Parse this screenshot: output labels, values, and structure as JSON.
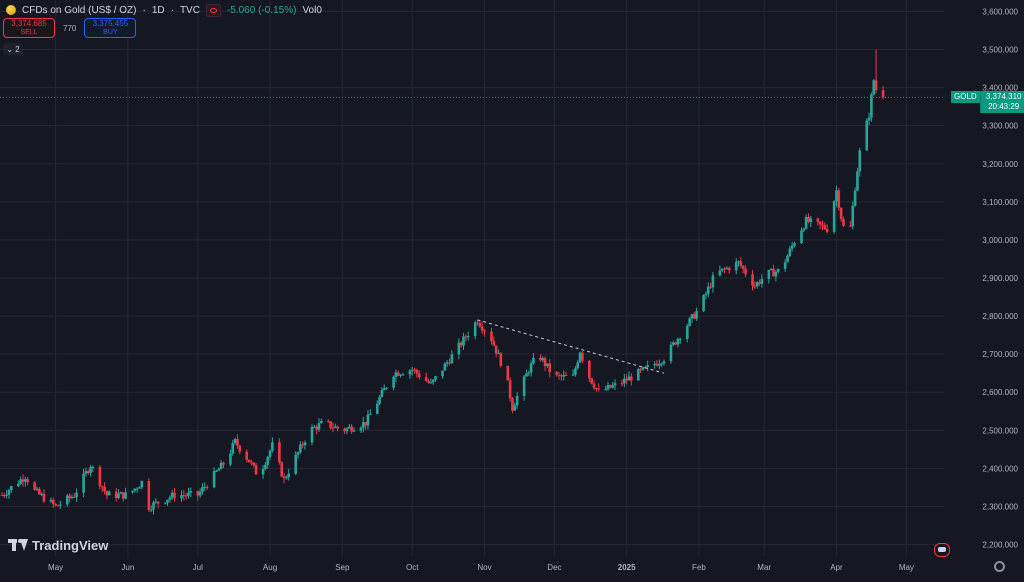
{
  "header": {
    "symbol_title": "CFDs on Gold (US$ / OZ)",
    "interval": "1D",
    "source": "TVC",
    "change": "-5.060 (-0.15%)",
    "volume": "Vol0"
  },
  "trade": {
    "sell_price": "3,374.685",
    "sell_label": "SELL",
    "spread": "770",
    "buy_price": "3,375.455",
    "buy_label": "BUY"
  },
  "indicators_toggle": "2",
  "brand": "TradingView",
  "current": {
    "symbol": "GOLD",
    "price": "3,374.310",
    "countdown": "20:43:29"
  },
  "colors": {
    "background": "#151823",
    "up": "#26a69a",
    "down": "#f23645",
    "grid": "#232733",
    "axis_text": "#b2b5be",
    "badge": "#089981"
  },
  "chart_data": {
    "type": "candlestick",
    "title": "CFDs on Gold (US$ / OZ)",
    "ylim": [
      2170,
      3630
    ],
    "y_ticks": [
      2200,
      2300,
      2400,
      2500,
      2600,
      2700,
      2800,
      2900,
      3000,
      3100,
      3200,
      3300,
      3400,
      3500,
      3600
    ],
    "y_tick_labels": [
      "2,200.000",
      "2,300.000",
      "2,400.000",
      "2,500.000",
      "2,600.000",
      "2,700.000",
      "2,800.000",
      "2,900.000",
      "3,000.000",
      "3,100.000",
      "3,200.000",
      "3,300.000",
      "3,400.000",
      "3,500.000",
      "3,600.000"
    ],
    "x_ticks": [
      {
        "label": "May",
        "day": 23
      },
      {
        "label": "Jun",
        "day": 54
      },
      {
        "label": "Jul",
        "day": 84
      },
      {
        "label": "Aug",
        "day": 115
      },
      {
        "label": "Sep",
        "day": 146
      },
      {
        "label": "Oct",
        "day": 176
      },
      {
        "label": "Nov",
        "day": 207
      },
      {
        "label": "Dec",
        "day": 237
      },
      {
        "label": "2025",
        "day": 268
      },
      {
        "label": "Feb",
        "day": 299
      },
      {
        "label": "Mar",
        "day": 327
      },
      {
        "label": "Apr",
        "day": 358
      },
      {
        "label": "May",
        "day": 388
      }
    ],
    "x_range_days": [
      0,
      405
    ],
    "current_price": 3374.31,
    "trendline": {
      "from": [
        204,
        2790
      ],
      "to": [
        284,
        2650
      ],
      "style": "dashed"
    },
    "key_points": [
      {
        "day": 0,
        "close": 2330
      },
      {
        "day": 10,
        "close": 2380
      },
      {
        "day": 14,
        "close": 2340
      },
      {
        "day": 23,
        "close": 2300
      },
      {
        "day": 31,
        "close": 2330
      },
      {
        "day": 38,
        "close": 2410
      },
      {
        "day": 45,
        "close": 2330
      },
      {
        "day": 54,
        "close": 2330
      },
      {
        "day": 61,
        "close": 2370
      },
      {
        "day": 63,
        "close": 2300
      },
      {
        "day": 74,
        "close": 2330
      },
      {
        "day": 84,
        "close": 2330
      },
      {
        "day": 96,
        "close": 2420
      },
      {
        "day": 100,
        "close": 2470
      },
      {
        "day": 106,
        "close": 2420
      },
      {
        "day": 110,
        "close": 2380
      },
      {
        "day": 116,
        "close": 2460
      },
      {
        "day": 121,
        "close": 2370
      },
      {
        "day": 132,
        "close": 2500
      },
      {
        "day": 138,
        "close": 2520
      },
      {
        "day": 146,
        "close": 2500
      },
      {
        "day": 156,
        "close": 2520
      },
      {
        "day": 168,
        "close": 2650
      },
      {
        "day": 176,
        "close": 2660
      },
      {
        "day": 184,
        "close": 2620
      },
      {
        "day": 196,
        "close": 2720
      },
      {
        "day": 204,
        "close": 2790
      },
      {
        "day": 210,
        "close": 2740
      },
      {
        "day": 216,
        "close": 2650
      },
      {
        "day": 219,
        "close": 2560
      },
      {
        "day": 226,
        "close": 2660
      },
      {
        "day": 230,
        "close": 2700
      },
      {
        "day": 237,
        "close": 2640
      },
      {
        "day": 245,
        "close": 2640
      },
      {
        "day": 248,
        "close": 2710
      },
      {
        "day": 251,
        "close": 2650
      },
      {
        "day": 256,
        "close": 2600
      },
      {
        "day": 264,
        "close": 2620
      },
      {
        "day": 276,
        "close": 2660
      },
      {
        "day": 284,
        "close": 2690
      },
      {
        "day": 292,
        "close": 2760
      },
      {
        "day": 299,
        "close": 2820
      },
      {
        "day": 306,
        "close": 2910
      },
      {
        "day": 316,
        "close": 2940
      },
      {
        "day": 323,
        "close": 2880
      },
      {
        "day": 328,
        "close": 2910
      },
      {
        "day": 334,
        "close": 2920
      },
      {
        "day": 341,
        "close": 3010
      },
      {
        "day": 345,
        "close": 3050
      },
      {
        "day": 354,
        "close": 3030
      },
      {
        "day": 358,
        "close": 3130
      },
      {
        "day": 360,
        "close": 3060
      },
      {
        "day": 363,
        "close": 2980
      },
      {
        "day": 366,
        "close": 3140
      },
      {
        "day": 368,
        "close": 3230
      },
      {
        "day": 372,
        "close": 3330
      },
      {
        "day": 374,
        "close": 3420
      },
      {
        "day": 376,
        "close": 3370
      },
      {
        "day": 378,
        "close": 3374
      }
    ],
    "notable_high": {
      "day": 375,
      "high": 3500
    }
  }
}
